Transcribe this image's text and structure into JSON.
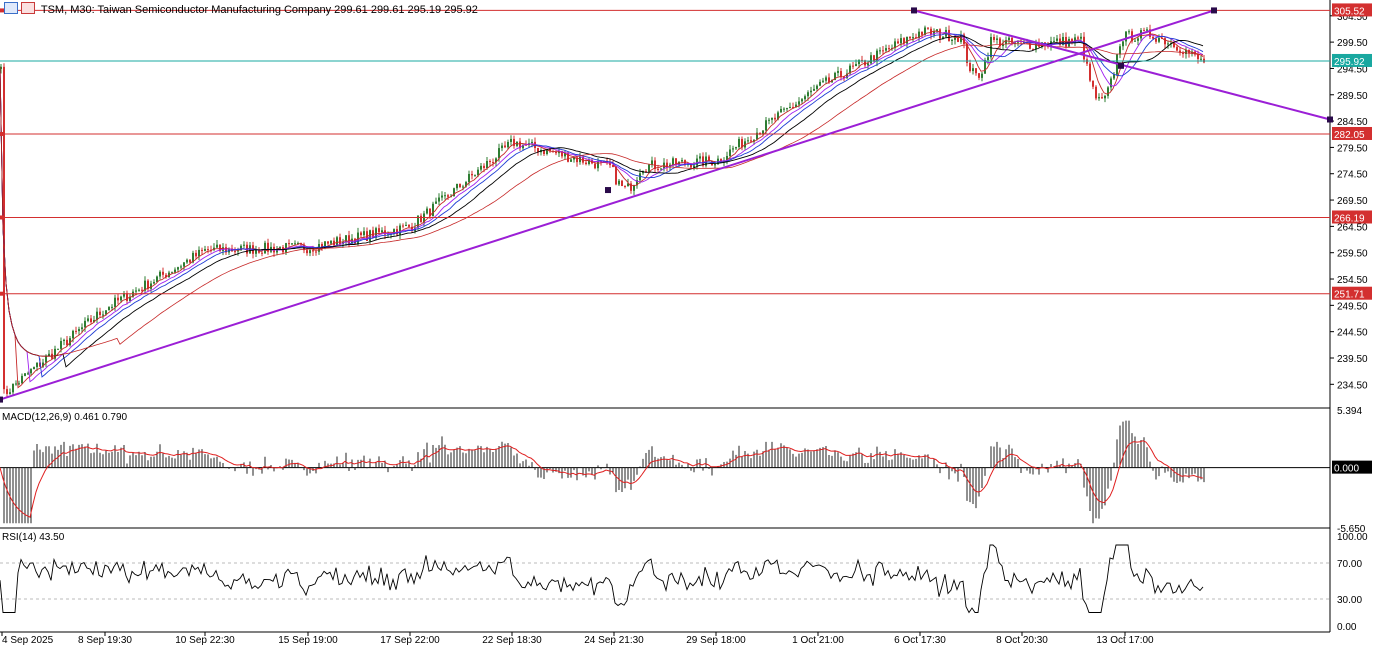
{
  "header": {
    "symbol_line": "TSM, M30:  Taiwan Semiconductor Manufacturing Company  299.61 299.61 295.19 295.92"
  },
  "colors": {
    "bull": "#2e7d32",
    "bear": "#d32f2f",
    "ma_black": "#000000",
    "ma_red": "#c62828",
    "ma_blue": "#1e3cd4",
    "ma_violet": "#a020f0",
    "trend": "#9b1fd6",
    "hline": "#d32f2f",
    "current": "#19a8a0",
    "signal": "#e02020"
  },
  "icons": [
    "chart-window-icon",
    "chart-properties-icon"
  ],
  "price_axis": {
    "min": 230.0,
    "max": 307.5,
    "ticks": [
      "304.50",
      "299.50",
      "294.50",
      "289.50",
      "284.50",
      "279.50",
      "274.50",
      "269.50",
      "264.50",
      "259.50",
      "254.50",
      "249.50",
      "244.50",
      "239.50",
      "234.50"
    ]
  },
  "price_tags": [
    {
      "value": 305.52,
      "label": "305.52",
      "kind": "level"
    },
    {
      "value": 295.92,
      "label": "295.92",
      "kind": "current"
    },
    {
      "value": 282.05,
      "label": "282.05",
      "kind": "level"
    },
    {
      "value": 266.19,
      "label": "266.19",
      "kind": "level"
    },
    {
      "value": 251.71,
      "label": "251.71",
      "kind": "level"
    }
  ],
  "trendlines": [
    {
      "from": {
        "bar": 0,
        "price": 231.6
      },
      "to": {
        "bar": 1214,
        "price": 305.52
      }
    },
    {
      "from": {
        "bar": 914,
        "price": 305.52
      },
      "to": {
        "bar": 1330,
        "price": 284.8
      }
    }
  ],
  "x_axis": {
    "labels": [
      "4 Sep 2025",
      "8 Sep 19:30",
      "10 Sep 22:30",
      "15 Sep 19:00",
      "17 Sep 22:00",
      "22 Sep 18:30",
      "24 Sep 21:30",
      "29 Sep 18:00",
      "1 Oct 21:00",
      "6 Oct 17:30",
      "8 Oct 20:30",
      "13 Oct 17:00"
    ]
  },
  "macd": {
    "label": "MACD(12,26,9) 0.461 0.790",
    "max": 5.394,
    "min": -5.65,
    "ticks": [
      "5.394",
      "0.000",
      "-5.650"
    ]
  },
  "rsi": {
    "label": "RSI(14) 43.50",
    "ticks": [
      "100.00",
      "70.00",
      "30.00",
      "0.00"
    ],
    "levels": [
      70,
      30
    ]
  },
  "chart_data": {
    "type": "candlestick",
    "title": "TSM, M30: Taiwan Semiconductor Manufacturing Company",
    "last_ohlc": {
      "open": 299.61,
      "high": 299.61,
      "low": 295.19,
      "close": 295.92
    },
    "price_anchors": [
      {
        "time": "4 Sep 2025",
        "close": 232.5
      },
      {
        "time": "8 Sep 19:30",
        "close": 249.0
      },
      {
        "time": "10 Sep 22:30",
        "close": 260.0
      },
      {
        "time": "15 Sep 19:00",
        "close": 260.5
      },
      {
        "time": "17 Sep 22:00",
        "close": 264.5
      },
      {
        "time": "22 Sep 18:30",
        "close": 280.5
      },
      {
        "time": "24 Sep 21:30",
        "close": 275.5
      },
      {
        "time": "29 Sep 18:00",
        "close": 277.0
      },
      {
        "time": "1 Oct 21:00",
        "close": 291.0
      },
      {
        "time": "6 Oct 17:30",
        "close": 301.5
      },
      {
        "time": "8 Oct 20:30",
        "close": 299.0
      },
      {
        "time": "13 Oct 17:00",
        "close": 300.5
      }
    ],
    "horizontal_levels": [
      305.52,
      282.05,
      266.19,
      251.71
    ],
    "current_price": 295.92,
    "macd_last": 0.461,
    "signal_last": 0.79,
    "rsi_last": 43.5,
    "ylim": [
      230.0,
      307.5
    ]
  }
}
